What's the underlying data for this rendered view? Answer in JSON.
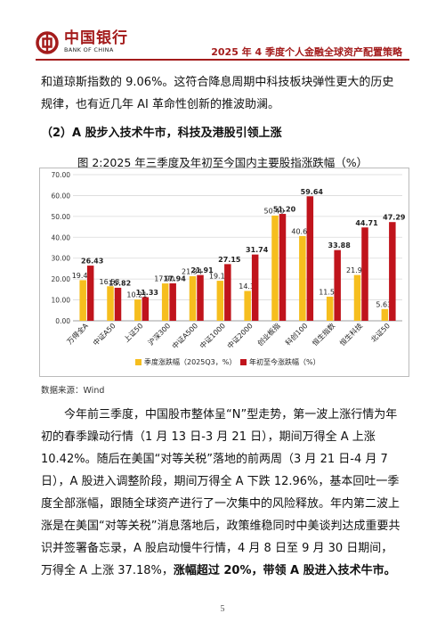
{
  "header": {
    "logo_cn": "中国银行",
    "logo_en": "BANK OF CHINA",
    "report_title": "2025 年 4 季度个人金融全球资产配置策略",
    "brand_color": "#a41c1c"
  },
  "para1": "和道琼斯指数的 9.06%。这符合降息周期中科技板块弹性更大的历史规律，也有近几年 AI 革命性创新的推波助澜。",
  "section_heading": "（2）A 股步入技术牛市，科技及港股引领上涨",
  "figure_title": "图 2:2025 年三季度及年初至今国内主要股指涨跌幅（%）",
  "chart_data": {
    "type": "bar",
    "categories": [
      "万得全A",
      "中证A50",
      "上证50",
      "沪深300",
      "中证A500",
      "中证1000",
      "中证2000",
      "创业板指",
      "科创100",
      "恒生指数",
      "恒生科技",
      "北证50"
    ],
    "series": [
      {
        "name": "季度涨跌幅（2025Q3，%）",
        "color": "#f6be1e",
        "values": [
          19.46,
          16.53,
          10.21,
          17.9,
          21.34,
          19.17,
          14.3,
          50.4,
          40.6,
          11.56,
          21.93,
          5.63
        ]
      },
      {
        "name": "年初至今涨跌幅（%）",
        "color": "#c0141c",
        "values": [
          26.43,
          15.82,
          11.33,
          17.94,
          21.91,
          27.15,
          31.74,
          51.2,
          59.64,
          33.88,
          44.71,
          47.29
        ]
      }
    ],
    "value_labels": [
      [
        "19.46",
        "16.53",
        "10.21",
        "17.90",
        "21.34",
        "19.17",
        "14.3",
        "50.40",
        "40.60",
        "11.56",
        "21.93",
        "5.63"
      ],
      [
        "26.43",
        "15.82",
        "11.33",
        "17.94",
        "21.91",
        "27.15",
        "31.74",
        "51.20",
        "59.64",
        "33.88",
        "44.71",
        "47.29"
      ]
    ],
    "ylim": [
      0,
      70
    ],
    "yticks": [
      "0.00",
      "10.00",
      "20.00",
      "30.00",
      "40.00",
      "50.00",
      "60.00",
      "70.00"
    ],
    "ytick_values": [
      0,
      10,
      20,
      30,
      40,
      50,
      60,
      70
    ],
    "grid": true,
    "legend": "bottom"
  },
  "source": "数据来源：Wind",
  "para2_plain": "今年前三季度，中国股市整体呈“N”型走势，第一波上涨行情为年初的春季躁动行情（1 月 13 日-3 月 21 日），期间万得全 A 上涨 10.42%。随后在美国“对等关税”落地的前两周（3 月 21 日-4 月 7 日），A 股进入调整阶段，期间万得全 A 下跌 12.96%，基本回吐一季度全部涨幅，跟随全球资产进行了一次集中的风险释放。年内第二波上涨是在美国“对等关税”消息落地后，政策维稳同时中美谈判达成重要共识并签署备忘录，A 股启动慢牛行情，4 月 8 日至 9 月 30 日期间，万得全 A 上涨 37.18%，",
  "para2_bold": "涨幅超过 20%，带领 A 股进入技术牛市。",
  "page_number": "5"
}
